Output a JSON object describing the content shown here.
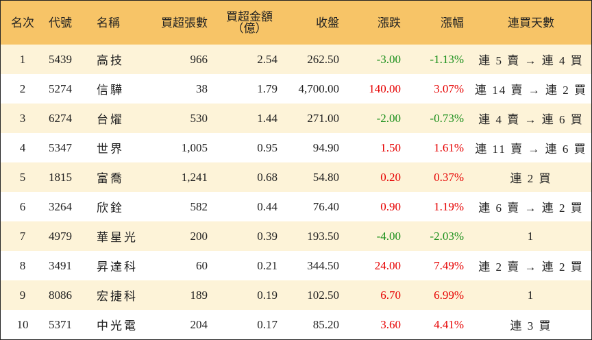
{
  "colors": {
    "header_bg": "#f7c467",
    "odd_row_bg": "#fdf3d8",
    "even_row_bg": "#ffffff",
    "up": "#e60000",
    "down": "#1a8f1a"
  },
  "header": {
    "rank": "名次",
    "code": "代號",
    "name": "名稱",
    "net_buy_lots": "買超張數",
    "net_buy_amount_line1": "買超金額",
    "net_buy_amount_line2": "（億）",
    "close": "收盤",
    "change": "漲跌",
    "change_pct": "漲幅",
    "consecutive_days": "連買天數"
  },
  "rows": [
    {
      "rank": "1",
      "code": "5439",
      "name": "高技",
      "lots": "966",
      "amount": "2.54",
      "close": "262.50",
      "change": "-3.00",
      "pct": "-1.13%",
      "days": "連 5 賣 → 連 4 買",
      "dir": "down"
    },
    {
      "rank": "2",
      "code": "5274",
      "name": "信驊",
      "lots": "38",
      "amount": "1.79",
      "close": "4,700.00",
      "change": "140.00",
      "pct": "3.07%",
      "days": "連 14 賣 → 連 2 買",
      "dir": "up"
    },
    {
      "rank": "3",
      "code": "6274",
      "name": "台燿",
      "lots": "530",
      "amount": "1.44",
      "close": "271.00",
      "change": "-2.00",
      "pct": "-0.73%",
      "days": "連 4 賣 → 連 6 買",
      "dir": "down"
    },
    {
      "rank": "4",
      "code": "5347",
      "name": "世界",
      "lots": "1,005",
      "amount": "0.95",
      "close": "94.90",
      "change": "1.50",
      "pct": "1.61%",
      "days": "連 11 賣 → 連 6 買",
      "dir": "up"
    },
    {
      "rank": "5",
      "code": "1815",
      "name": "富喬",
      "lots": "1,241",
      "amount": "0.68",
      "close": "54.80",
      "change": "0.20",
      "pct": "0.37%",
      "days": "連 2 買",
      "dir": "up"
    },
    {
      "rank": "6",
      "code": "3264",
      "name": "欣銓",
      "lots": "582",
      "amount": "0.44",
      "close": "76.40",
      "change": "0.90",
      "pct": "1.19%",
      "days": "連 6 賣 → 連 2 買",
      "dir": "up"
    },
    {
      "rank": "7",
      "code": "4979",
      "name": "華星光",
      "lots": "200",
      "amount": "0.39",
      "close": "193.50",
      "change": "-4.00",
      "pct": "-2.03%",
      "days": "1",
      "dir": "down"
    },
    {
      "rank": "8",
      "code": "3491",
      "name": "昇達科",
      "lots": "60",
      "amount": "0.21",
      "close": "344.50",
      "change": "24.00",
      "pct": "7.49%",
      "days": "連 2 賣 → 連 2 買",
      "dir": "up"
    },
    {
      "rank": "9",
      "code": "8086",
      "name": "宏捷科",
      "lots": "189",
      "amount": "0.19",
      "close": "102.50",
      "change": "6.70",
      "pct": "6.99%",
      "days": "1",
      "dir": "up"
    },
    {
      "rank": "10",
      "code": "5371",
      "name": "中光電",
      "lots": "204",
      "amount": "0.17",
      "close": "85.20",
      "change": "3.60",
      "pct": "4.41%",
      "days": "連 3 買",
      "dir": "up"
    }
  ]
}
